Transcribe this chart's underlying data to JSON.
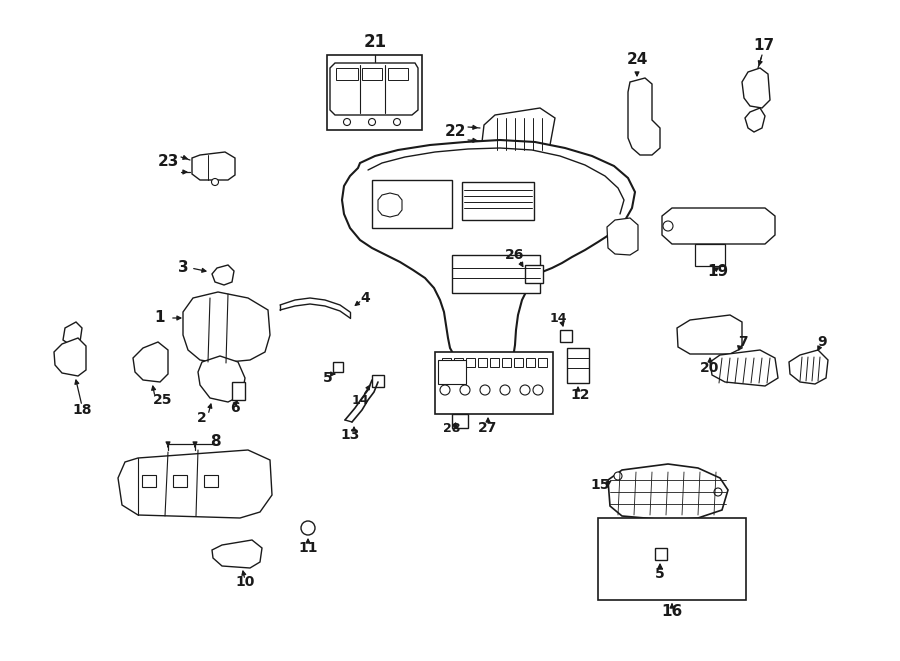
{
  "bg_color": "#ffffff",
  "line_color": "#1a1a1a",
  "figsize": [
    9.0,
    6.61
  ],
  "dpi": 100,
  "xlim": [
    0,
    900
  ],
  "ylim": [
    0,
    661
  ]
}
